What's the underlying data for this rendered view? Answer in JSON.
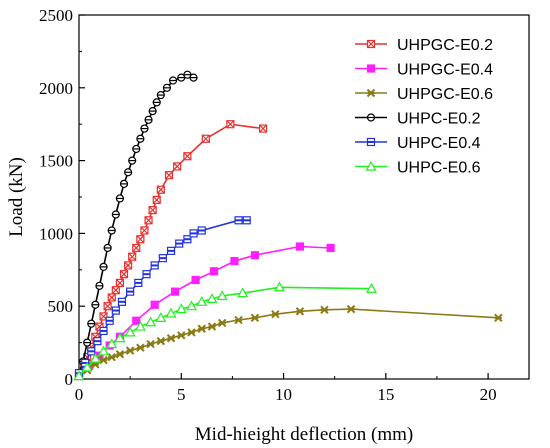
{
  "chart_data": {
    "type": "line",
    "xlabel": "Mid-hieight deflection (mm)",
    "ylabel": "Load (kN)",
    "xlim": [
      0,
      22
    ],
    "ylim": [
      0,
      2500
    ],
    "xticks": [
      0,
      5,
      10,
      15,
      20
    ],
    "yticks": [
      0,
      500,
      1000,
      1500,
      2000,
      2500
    ],
    "xtick_labels": [
      "0",
      "5",
      "10",
      "15",
      "20"
    ],
    "ytick_labels": [
      "0",
      "500",
      "1000",
      "1500",
      "2000",
      "2500"
    ],
    "grid": false,
    "legend_position": "top-right",
    "series": [
      {
        "name": "UHPGC-E0.2",
        "color": "#e8312f",
        "marker": "x-square",
        "x": [
          0.0,
          0.2,
          0.4,
          0.6,
          0.8,
          1.0,
          1.2,
          1.4,
          1.6,
          1.8,
          2.0,
          2.2,
          2.4,
          2.6,
          2.8,
          3.0,
          3.2,
          3.4,
          3.6,
          3.8,
          4.0,
          4.4,
          4.8,
          5.3,
          6.2,
          7.4,
          9.0
        ],
        "y": [
          30,
          80,
          150,
          220,
          290,
          360,
          430,
          500,
          560,
          610,
          660,
          720,
          780,
          840,
          900,
          960,
          1020,
          1090,
          1160,
          1230,
          1300,
          1400,
          1460,
          1530,
          1650,
          1750,
          1720
        ]
      },
      {
        "name": "UHPGC-E0.4",
        "color": "#ff1fff",
        "marker": "square",
        "x": [
          0.0,
          0.5,
          1.0,
          1.5,
          2.0,
          2.8,
          3.7,
          4.7,
          5.7,
          6.6,
          7.6,
          8.6,
          10.8,
          12.3
        ],
        "y": [
          20,
          90,
          160,
          230,
          290,
          400,
          510,
          600,
          680,
          740,
          810,
          850,
          910,
          900
        ]
      },
      {
        "name": "UHPGC-E0.6",
        "color": "#8a7b16",
        "marker": "star",
        "x": [
          0.0,
          0.4,
          0.8,
          1.2,
          1.6,
          2.0,
          2.5,
          3.0,
          3.5,
          4.0,
          4.5,
          5.0,
          5.5,
          6.0,
          6.5,
          7.0,
          7.8,
          8.6,
          9.6,
          10.8,
          12.0,
          13.3,
          20.5
        ],
        "y": [
          20,
          60,
          100,
          130,
          150,
          170,
          195,
          215,
          240,
          260,
          280,
          300,
          320,
          345,
          360,
          385,
          405,
          420,
          445,
          465,
          475,
          480,
          420
        ]
      },
      {
        "name": "UHPC-E0.2",
        "color": "#000000",
        "marker": "circle",
        "x": [
          0.0,
          0.2,
          0.4,
          0.6,
          0.8,
          1.0,
          1.2,
          1.4,
          1.6,
          1.8,
          2.0,
          2.2,
          2.4,
          2.6,
          2.8,
          3.0,
          3.2,
          3.4,
          3.6,
          3.8,
          4.0,
          4.3,
          4.6,
          5.0,
          5.3,
          5.6
        ],
        "y": [
          40,
          120,
          250,
          380,
          510,
          640,
          770,
          900,
          1020,
          1130,
          1240,
          1340,
          1420,
          1500,
          1580,
          1650,
          1720,
          1780,
          1840,
          1900,
          1950,
          2000,
          2050,
          2070,
          2090,
          2070
        ]
      },
      {
        "name": "UHPC-E0.4",
        "color": "#2233dd",
        "marker": "square-open",
        "x": [
          0.0,
          0.3,
          0.6,
          0.9,
          1.2,
          1.5,
          1.8,
          2.1,
          2.5,
          2.9,
          3.3,
          3.7,
          4.1,
          4.5,
          4.9,
          5.3,
          5.6,
          6.0,
          7.8,
          8.2
        ],
        "y": [
          40,
          110,
          190,
          260,
          330,
          400,
          470,
          530,
          600,
          660,
          720,
          780,
          830,
          880,
          930,
          960,
          1000,
          1020,
          1090,
          1090
        ]
      },
      {
        "name": "UHPC-E0.6",
        "color": "#22ee22",
        "marker": "triangle",
        "x": [
          0.0,
          0.4,
          0.8,
          1.2,
          1.6,
          2.0,
          2.5,
          3.0,
          3.5,
          4.0,
          4.5,
          5.0,
          5.5,
          6.0,
          6.5,
          7.0,
          8.0,
          9.8,
          14.3
        ],
        "y": [
          20,
          80,
          140,
          190,
          240,
          280,
          320,
          360,
          390,
          420,
          450,
          480,
          500,
          530,
          550,
          570,
          590,
          630,
          620
        ]
      }
    ]
  }
}
